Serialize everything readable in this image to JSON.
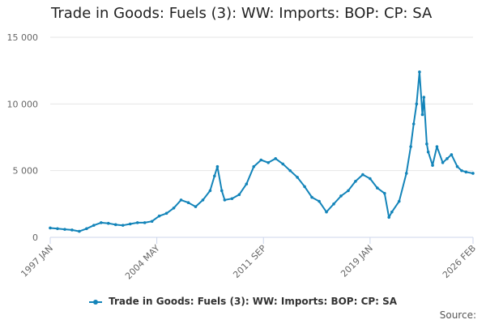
{
  "chart_data": {
    "type": "line",
    "title": "Trade in Goods: Fuels (3): WW: Imports: BOP: CP: SA",
    "xlabel": "",
    "ylabel": "",
    "ylim": [
      0,
      15000
    ],
    "y_ticks": [
      0,
      5000,
      10000,
      15000
    ],
    "y_tick_labels": [
      "0",
      "5 000",
      "10 000",
      "15 000"
    ],
    "x_ticks": [
      1997.0,
      2004.333,
      2011.667,
      2019.0,
      2026.083
    ],
    "x_tick_labels": [
      "1997 JAN",
      "2004 MAY",
      "2011 SEP",
      "2019 JAN",
      "2026 FEB"
    ],
    "grid": "horizontal",
    "legend": "bottom-center",
    "color": "#1384b9",
    "series": [
      {
        "name": "Trade in Goods: Fuels (3): WW: Imports: BOP: CP: SA",
        "x": [
          1997.0,
          1997.5,
          1998.0,
          1998.5,
          1999.0,
          1999.5,
          2000.0,
          2000.5,
          2001.0,
          2001.5,
          2002.0,
          2002.5,
          2003.0,
          2003.5,
          2004.0,
          2004.5,
          2005.0,
          2005.5,
          2006.0,
          2006.5,
          2007.0,
          2007.5,
          2008.0,
          2008.3,
          2008.5,
          2008.8,
          2009.0,
          2009.5,
          2010.0,
          2010.5,
          2011.0,
          2011.5,
          2012.0,
          2012.5,
          2013.0,
          2013.5,
          2014.0,
          2014.5,
          2015.0,
          2015.5,
          2016.0,
          2016.5,
          2017.0,
          2017.5,
          2018.0,
          2018.5,
          2019.0,
          2019.5,
          2020.0,
          2020.3,
          2020.5,
          2021.0,
          2021.5,
          2021.8,
          2022.0,
          2022.2,
          2022.4,
          2022.6,
          2022.7,
          2022.9,
          2023.0,
          2023.3,
          2023.6,
          2024.0,
          2024.3,
          2024.6,
          2025.0,
          2025.3,
          2025.6,
          2026.08
        ],
        "y": [
          700,
          650,
          600,
          550,
          450,
          650,
          900,
          1100,
          1050,
          950,
          900,
          1000,
          1100,
          1100,
          1200,
          1600,
          1800,
          2200,
          2800,
          2600,
          2300,
          2800,
          3500,
          4600,
          5300,
          3500,
          2800,
          2900,
          3200,
          4000,
          5300,
          5800,
          5600,
          5900,
          5500,
          5000,
          4500,
          3800,
          3000,
          2700,
          1900,
          2500,
          3100,
          3500,
          4200,
          4700,
          4400,
          3700,
          3300,
          1500,
          1900,
          2700,
          4800,
          6800,
          8500,
          10000,
          12400,
          9200,
          10500,
          7000,
          6400,
          5400,
          6800,
          5600,
          5900,
          6200,
          5300,
          5000,
          4900,
          4800
        ]
      }
    ]
  },
  "legend": {
    "label": "Trade in Goods: Fuels (3): WW: Imports: BOP: CP: SA"
  },
  "footer": {
    "source_label": "Source:"
  }
}
